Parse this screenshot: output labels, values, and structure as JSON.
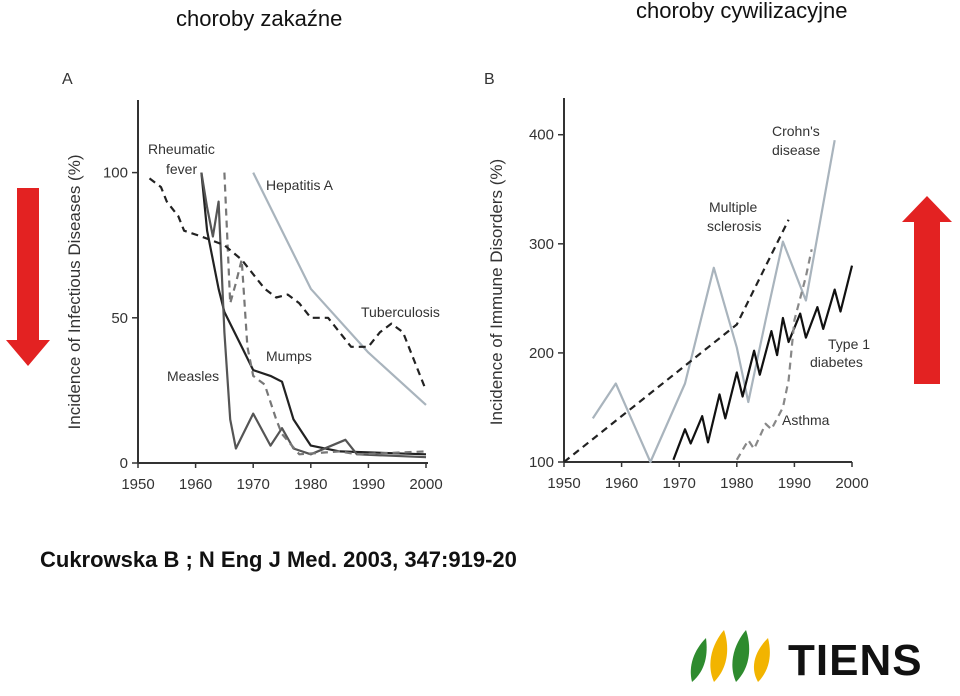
{
  "header": {
    "left_title": "choroby zakaźne",
    "right_title": "choroby cywilizacyjne"
  },
  "citation": "Cukrowska B ; N Eng J Med. 2003, 347:919-20",
  "logo": {
    "text": "TIENS",
    "colors": [
      "#2e8b2e",
      "#f2b400",
      "#111111"
    ]
  },
  "arrows": {
    "down_color": "#e32222",
    "up_color": "#e32222"
  },
  "chart_data": [
    {
      "type": "line",
      "panel_label": "A",
      "xlabel": "",
      "ylabel": "Incidence of Infectious Diseases (%)",
      "xlim": [
        1950,
        2000
      ],
      "ylim": [
        0,
        125
      ],
      "xticks": [
        1950,
        1960,
        1970,
        1980,
        1990,
        2000
      ],
      "yticks": [
        0,
        50,
        100
      ],
      "series": [
        {
          "name": "Rheumatic fever",
          "style": "solid",
          "color": "#222222",
          "points": [
            [
              1961,
              100
            ],
            [
              1962,
              80
            ],
            [
              1964,
              60
            ],
            [
              1965,
              52
            ],
            [
              1968,
              40
            ],
            [
              1970,
              32
            ],
            [
              1973,
              30
            ],
            [
              1975,
              28
            ],
            [
              1977,
              15
            ],
            [
              1980,
              6
            ],
            [
              1985,
              4
            ],
            [
              2000,
              3
            ]
          ]
        },
        {
          "name": "Measles",
          "style": "solid",
          "color": "#555555",
          "points": [
            [
              1961,
              100
            ],
            [
              1962,
              88
            ],
            [
              1963,
              78
            ],
            [
              1964,
              90
            ],
            [
              1965,
              45
            ],
            [
              1966,
              15
            ],
            [
              1967,
              5
            ],
            [
              1970,
              17
            ],
            [
              1973,
              6
            ],
            [
              1975,
              12
            ],
            [
              1977,
              5
            ],
            [
              1980,
              3
            ],
            [
              1986,
              8
            ],
            [
              1988,
              3
            ],
            [
              2000,
              2
            ]
          ]
        },
        {
          "name": "Mumps",
          "style": "dashed",
          "color": "#777777",
          "points": [
            [
              1965,
              100
            ],
            [
              1966,
              55
            ],
            [
              1967,
              62
            ],
            [
              1968,
              70
            ],
            [
              1969,
              40
            ],
            [
              1970,
              30
            ],
            [
              1972,
              27
            ],
            [
              1974,
              15
            ],
            [
              1975,
              10
            ],
            [
              1978,
              3
            ],
            [
              1985,
              4
            ],
            [
              1988,
              3
            ],
            [
              2000,
              4
            ]
          ]
        },
        {
          "name": "Hepatitis A",
          "style": "solid",
          "color": "#a9b4bd",
          "points": [
            [
              1970,
              100
            ],
            [
              1980,
              60
            ],
            [
              1990,
              38
            ],
            [
              2000,
              20
            ]
          ]
        },
        {
          "name": "Tuberculosis",
          "style": "dashed",
          "color": "#222222",
          "points": [
            [
              1952,
              98
            ],
            [
              1954,
              95
            ],
            [
              1955,
              90
            ],
            [
              1957,
              85
            ],
            [
              1958,
              80
            ],
            [
              1961,
              78
            ],
            [
              1965,
              75
            ],
            [
              1968,
              70
            ],
            [
              1972,
              60
            ],
            [
              1974,
              57
            ],
            [
              1976,
              58
            ],
            [
              1978,
              55
            ],
            [
              1980,
              50
            ],
            [
              1983,
              50
            ],
            [
              1985,
              45
            ],
            [
              1987,
              40
            ],
            [
              1990,
              40
            ],
            [
              1992,
              45
            ],
            [
              1994,
              48
            ],
            [
              1996,
              45
            ],
            [
              1998,
              35
            ],
            [
              2000,
              25
            ]
          ]
        }
      ],
      "annotations": [
        "Rheumatic fever",
        "Hepatitis A",
        "Tuberculosis",
        "Mumps",
        "Measles"
      ]
    },
    {
      "type": "line",
      "panel_label": "B",
      "xlabel": "",
      "ylabel": "Incidence of Immune Disorders (%)",
      "xlim": [
        1950,
        2000
      ],
      "ylim": [
        100,
        430
      ],
      "xticks": [
        1950,
        1960,
        1970,
        1980,
        1990,
        2000
      ],
      "yticks": [
        100,
        200,
        300,
        400
      ],
      "series": [
        {
          "name": "Crohn's disease",
          "style": "solid",
          "color": "#a9b4bd",
          "points": [
            [
              1955,
              140
            ],
            [
              1959,
              172
            ],
            [
              1965,
              100
            ],
            [
              1971,
              172
            ],
            [
              1976,
              278
            ],
            [
              1980,
              205
            ],
            [
              1982,
              155
            ],
            [
              1985,
              230
            ],
            [
              1988,
              302
            ],
            [
              1992,
              248
            ],
            [
              1997,
              395
            ]
          ]
        },
        {
          "name": "Multiple sclerosis",
          "style": "dashed",
          "color": "#222222",
          "points": [
            [
              1950,
              100
            ],
            [
              1980,
              226
            ],
            [
              1989,
              322
            ]
          ]
        },
        {
          "name": "Type 1 diabetes",
          "style": "solid",
          "color": "#111111",
          "points": [
            [
              1969,
              102
            ],
            [
              1971,
              130
            ],
            [
              1972,
              117
            ],
            [
              1974,
              142
            ],
            [
              1975,
              118
            ],
            [
              1977,
              162
            ],
            [
              1978,
              140
            ],
            [
              1980,
              182
            ],
            [
              1981,
              160
            ],
            [
              1983,
              202
            ],
            [
              1984,
              180
            ],
            [
              1986,
              220
            ],
            [
              1987,
              198
            ],
            [
              1988,
              232
            ],
            [
              1989,
              210
            ],
            [
              1991,
              236
            ],
            [
              1992,
              214
            ],
            [
              1994,
              242
            ],
            [
              1995,
              222
            ],
            [
              1997,
              258
            ],
            [
              1998,
              238
            ],
            [
              2000,
              280
            ]
          ]
        },
        {
          "name": "Asthma",
          "style": "dashed",
          "color": "#888888",
          "points": [
            [
              1980,
              102
            ],
            [
              1982,
              120
            ],
            [
              1983,
              112
            ],
            [
              1985,
              135
            ],
            [
              1986,
              130
            ],
            [
              1988,
              150
            ],
            [
              1989,
              175
            ],
            [
              1990,
              230
            ],
            [
              1992,
              270
            ],
            [
              1993,
              295
            ]
          ]
        }
      ],
      "annotations": [
        "Crohn's disease",
        "Multiple sclerosis",
        "Type 1 diabetes",
        "Asthma"
      ]
    }
  ],
  "panel_text": {
    "a_label": "A",
    "b_label": "B",
    "a_ylabel": "Incidence of Infectious Diseases (%)",
    "b_ylabel": "Incidence of Immune Disorders (%)",
    "rheumatic_line1": "Rheumatic",
    "rheumatic_line2": "fever",
    "hepatitis": "Hepatitis A",
    "tuberculosis": "Tuberculosis",
    "mumps": "Mumps",
    "measles": "Measles",
    "crohns_line1": "Crohn's",
    "crohns_line2": "disease",
    "ms_line1": "Multiple",
    "ms_line2": "sclerosis",
    "t1d_line1": "Type 1",
    "t1d_line2": "diabetes",
    "asthma": "Asthma"
  }
}
